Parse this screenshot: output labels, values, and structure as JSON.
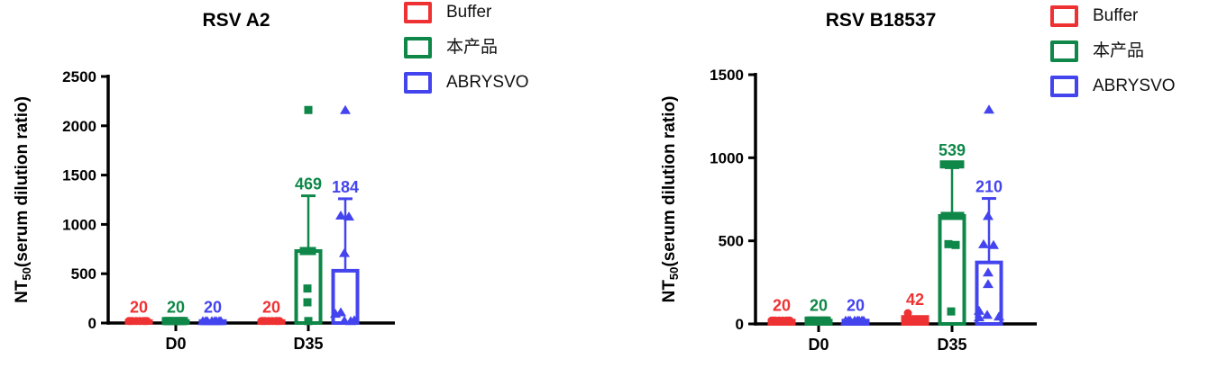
{
  "page": {
    "background": "#ffffff"
  },
  "chart_data": [
    {
      "type": "bar",
      "title": "RSV A2",
      "ylabel": "NT50(serum dilution ratio)",
      "ylabel_parts": {
        "prefix": "NT",
        "sub": "50",
        "suffix": "(serum dilution ratio)"
      },
      "ylim": [
        0,
        2500
      ],
      "yticks": [
        0,
        500,
        1000,
        1500,
        2000,
        2500
      ],
      "categories": [
        "D0",
        "D35"
      ],
      "grid": false,
      "legend_position": "right",
      "series": [
        {
          "name": "Buffer",
          "color": "#ee3233",
          "marker": "circle",
          "bars": [
            {
              "category": "D0",
              "mean": 20,
              "sd_top": null,
              "label": "20",
              "label_anchor": 40,
              "points": [
                [
                  20,
                  -11
                ],
                [
                  20,
                  -7
                ],
                [
                  20,
                  -3
                ],
                [
                  20,
                  1
                ],
                [
                  20,
                  5
                ],
                [
                  20,
                  9
                ],
                [
                  20,
                  -9
                ],
                [
                  20,
                  7
                ]
              ]
            },
            {
              "category": "D35",
              "mean": 20,
              "sd_top": null,
              "label": "20",
              "label_anchor": 40,
              "points": [
                [
                  20,
                  -11
                ],
                [
                  20,
                  -7
                ],
                [
                  20,
                  -3
                ],
                [
                  20,
                  1
                ],
                [
                  20,
                  5
                ],
                [
                  20,
                  9
                ],
                [
                  20,
                  -9
                ],
                [
                  20,
                  7
                ]
              ]
            }
          ]
        },
        {
          "name": "本产品",
          "color": "#0e8748",
          "marker": "square",
          "bars": [
            {
              "category": "D0",
              "mean": 20,
              "sd_top": null,
              "label": "20",
              "label_anchor": 40,
              "points": [
                [
                  20,
                  -11
                ],
                [
                  20,
                  -7
                ],
                [
                  20,
                  -3
                ],
                [
                  20,
                  1
                ],
                [
                  20,
                  5
                ],
                [
                  20,
                  9
                ],
                [
                  20,
                  -9
                ],
                [
                  20,
                  7
                ]
              ]
            },
            {
              "category": "D35",
              "mean": 730,
              "sd_top": 1290,
              "label": "469",
              "label_anchor": 1290,
              "points": [
                [
                  2160,
                  0
                ],
                [
                  730,
                  -5
                ],
                [
                  730,
                  4
                ],
                [
                  350,
                  -1
                ],
                [
                  210,
                  -1
                ],
                [
                  20,
                  0
                ]
              ]
            }
          ]
        },
        {
          "name": "ABRYSVO",
          "color": "#4444ee",
          "marker": "triangle",
          "bars": [
            {
              "category": "D0",
              "mean": 20,
              "sd_top": null,
              "label": "20",
              "label_anchor": 40,
              "points": [
                [
                  20,
                  -11
                ],
                [
                  20,
                  -6
                ],
                [
                  20,
                  -1
                ],
                [
                  20,
                  4
                ],
                [
                  20,
                  9
                ],
                [
                  20,
                  -8
                ],
                [
                  20,
                  2
                ],
                [
                  20,
                  7
                ]
              ]
            },
            {
              "category": "D35",
              "mean": 530,
              "sd_top": 1260,
              "label": "184",
              "label_anchor": 1260,
              "points": [
                [
                  2160,
                  0
                ],
                [
                  1090,
                  -5
                ],
                [
                  1080,
                  4
                ],
                [
                  710,
                  -1
                ],
                [
                  110,
                  -5
                ],
                [
                  95,
                  -11
                ],
                [
                  30,
                  10
                ],
                [
                  25,
                  -1
                ],
                [
                  20,
                  6
                ]
              ]
            }
          ]
        }
      ]
    },
    {
      "type": "bar",
      "title": "RSV B18537",
      "ylabel": "NT50(serum dilution ratio)",
      "ylabel_parts": {
        "prefix": "NT",
        "sub": "50",
        "suffix": "(serum dilution ratio)"
      },
      "ylim": [
        0,
        1500
      ],
      "yticks": [
        0,
        500,
        1000,
        1500
      ],
      "categories": [
        "D0",
        "D35"
      ],
      "grid": false,
      "legend_position": "right",
      "series": [
        {
          "name": "Buffer",
          "color": "#ee3233",
          "marker": "circle",
          "bars": [
            {
              "category": "D0",
              "mean": 20,
              "sd_top": null,
              "label": "20",
              "label_anchor": 40,
              "points": [
                [
                  20,
                  -11
                ],
                [
                  20,
                  -7
                ],
                [
                  20,
                  -3
                ],
                [
                  20,
                  1
                ],
                [
                  20,
                  5
                ],
                [
                  20,
                  9
                ],
                [
                  20,
                  -9
                ],
                [
                  20,
                  7
                ]
              ]
            },
            {
              "category": "D35",
              "mean": 42,
              "sd_top": null,
              "label": "42",
              "label_anchor": 75,
              "points": [
                [
                  65,
                  -8
                ],
                [
                  30,
                  -11
                ],
                [
                  28,
                  -5
                ],
                [
                  25,
                  1
                ],
                [
                  25,
                  7
                ],
                [
                  22,
                  11
                ]
              ]
            }
          ]
        },
        {
          "name": "本产品",
          "color": "#0e8748",
          "marker": "square",
          "bars": [
            {
              "category": "D0",
              "mean": 20,
              "sd_top": null,
              "label": "20",
              "label_anchor": 40,
              "points": [
                [
                  20,
                  -11
                ],
                [
                  20,
                  -7
                ],
                [
                  20,
                  -3
                ],
                [
                  20,
                  1
                ],
                [
                  20,
                  5
                ],
                [
                  20,
                  9
                ],
                [
                  20,
                  -9
                ],
                [
                  20,
                  7
                ]
              ]
            },
            {
              "category": "D35",
              "mean": 650,
              "sd_top": 940,
              "label": "539",
              "label_anchor": 975,
              "points": [
                [
                  960,
                  -9
                ],
                [
                  960,
                  0
                ],
                [
                  960,
                  9
                ],
                [
                  650,
                  -8
                ],
                [
                  650,
                  1
                ],
                [
                  650,
                  9
                ],
                [
                  480,
                  -4
                ],
                [
                  475,
                  4
                ],
                [
                  75,
                  -1
                ]
              ]
            }
          ]
        },
        {
          "name": "ABRYSVO",
          "color": "#4444ee",
          "marker": "triangle",
          "bars": [
            {
              "category": "D0",
              "mean": 20,
              "sd_top": null,
              "label": "20",
              "label_anchor": 40,
              "points": [
                [
                  20,
                  -11
                ],
                [
                  20,
                  -6
                ],
                [
                  20,
                  -1
                ],
                [
                  20,
                  4
                ],
                [
                  20,
                  9
                ],
                [
                  20,
                  -8
                ],
                [
                  20,
                  2
                ],
                [
                  20,
                  7
                ]
              ]
            },
            {
              "category": "D35",
              "mean": 370,
              "sd_top": 755,
              "label": "210",
              "label_anchor": 755,
              "points": [
                [
                  1290,
                  0
                ],
                [
                  650,
                  -1
                ],
                [
                  480,
                  -6
                ],
                [
                  475,
                  5
                ],
                [
                  310,
                  -1
                ],
                [
                  240,
                  -1
                ],
                [
                  80,
                  -11
                ],
                [
                  40,
                  -11
                ],
                [
                  55,
                  -2
                ],
                [
                  45,
                  11
                ]
              ]
            }
          ]
        }
      ]
    }
  ]
}
